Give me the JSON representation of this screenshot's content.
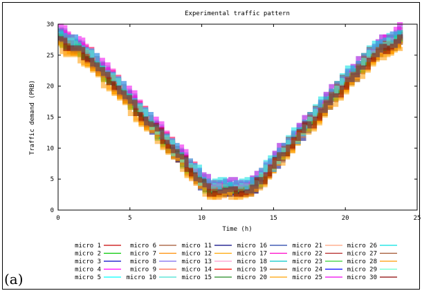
{
  "panel_label": "(a)",
  "chart_data": {
    "type": "line",
    "title": "Experimental traffic pattern",
    "xlabel": "Time (h)",
    "ylabel": "Traffic demand (PRB)",
    "xlim": [
      0,
      25
    ],
    "ylim": [
      0,
      30
    ],
    "xticks": [
      0,
      5,
      10,
      15,
      20,
      25
    ],
    "yticks": [
      0,
      5,
      10,
      15,
      20,
      25,
      30
    ],
    "grid": false,
    "legend_position": "below",
    "series": [
      {
        "name": "micro 1",
        "color": "#c80000",
        "values": [
          28,
          25.5,
          18,
          10,
          3.5,
          3.5,
          10,
          18,
          25.5,
          28
        ]
      },
      {
        "name": "micro 2",
        "color": "#00c800",
        "values": [
          27.5,
          25,
          17.5,
          9.5,
          3,
          3.5,
          10.5,
          18.5,
          26,
          28.5
        ]
      },
      {
        "name": "micro 3",
        "color": "#0000c8",
        "values": [
          28.5,
          25.5,
          18,
          10,
          3.5,
          3,
          10,
          18,
          25.5,
          27.5
        ]
      },
      {
        "name": "micro 4",
        "color": "#ff00ff",
        "values": [
          29,
          26,
          18.5,
          10.5,
          4,
          4,
          10.5,
          18.5,
          26,
          28.5
        ]
      },
      {
        "name": "micro 5",
        "color": "#00ffff",
        "values": [
          28,
          25,
          17.5,
          9.5,
          3.5,
          3.5,
          10,
          18,
          25.5,
          28
        ]
      },
      {
        "name": "micro 6",
        "color": "#a0522d",
        "values": [
          27.5,
          25,
          17.5,
          10,
          3,
          3,
          10,
          18,
          25.5,
          27.5
        ]
      },
      {
        "name": "micro 7",
        "color": "#ff8c00",
        "values": [
          27,
          24.5,
          17,
          9.5,
          2.5,
          3,
          9.5,
          17.5,
          25,
          27
        ]
      },
      {
        "name": "micro 8",
        "color": "#7b68ee",
        "values": [
          28,
          25.5,
          18,
          10,
          3.5,
          3.5,
          10,
          18,
          25.5,
          28
        ]
      },
      {
        "name": "micro 9",
        "color": "#ff6347",
        "values": [
          28.5,
          26,
          18.5,
          10.5,
          4,
          3.5,
          10.5,
          18.5,
          26,
          28
        ]
      },
      {
        "name": "micro 10",
        "color": "#40e0d0",
        "values": [
          29,
          26,
          18.5,
          10.5,
          4.5,
          4.5,
          11,
          19,
          26.5,
          29
        ]
      },
      {
        "name": "micro 11",
        "color": "#000080",
        "values": [
          28,
          25,
          17.5,
          9.5,
          3,
          3,
          9.5,
          17.5,
          25,
          27.5
        ]
      },
      {
        "name": "micro 12",
        "color": "#ffa500",
        "values": [
          27,
          24.5,
          17,
          9.5,
          3,
          3,
          9.5,
          17,
          24.5,
          27
        ]
      },
      {
        "name": "micro 13",
        "color": "#ff99cc",
        "values": [
          28,
          25.5,
          18,
          10,
          3.5,
          3.5,
          10,
          18,
          25.5,
          28
        ]
      },
      {
        "name": "micro 14",
        "color": "#ff0000",
        "values": [
          28.5,
          25.5,
          18,
          10,
          3.5,
          3.5,
          10.5,
          18.5,
          26,
          28.5
        ]
      },
      {
        "name": "micro 15",
        "color": "#228b22",
        "values": [
          27.5,
          25,
          17.5,
          9.5,
          3,
          3,
          10,
          18,
          25.5,
          27.5
        ]
      },
      {
        "name": "micro 16",
        "color": "#1e3ca8",
        "values": [
          28,
          25.5,
          18,
          10,
          3.5,
          3.5,
          10,
          18,
          25.5,
          28
        ]
      },
      {
        "name": "micro 17",
        "color": "#ff00c8",
        "values": [
          29,
          26,
          18.5,
          10.5,
          4,
          4,
          10.5,
          18.5,
          26,
          29
        ]
      },
      {
        "name": "micro 18",
        "color": "#00c8c8",
        "values": [
          28.5,
          25.5,
          18,
          10,
          4,
          4,
          10.5,
          18.5,
          26,
          28.5
        ]
      },
      {
        "name": "micro 19",
        "color": "#8b4513",
        "values": [
          27.5,
          25,
          17.5,
          9.5,
          3,
          3,
          10,
          17.5,
          25,
          27.5
        ]
      },
      {
        "name": "micro 20",
        "color": "#ffa000",
        "values": [
          26.5,
          24,
          16.5,
          9,
          2.5,
          2.5,
          9.5,
          17,
          24.5,
          26.5
        ]
      },
      {
        "name": "micro 21",
        "color": "#ffa07a",
        "values": [
          28,
          25.5,
          18,
          10,
          3.5,
          3.5,
          10,
          18,
          25.5,
          28
        ]
      },
      {
        "name": "micro 22",
        "color": "#b22222",
        "values": [
          28,
          25,
          17.5,
          10,
          3.5,
          3,
          10,
          18,
          25.5,
          27.5
        ]
      },
      {
        "name": "micro 23",
        "color": "#32cd32",
        "values": [
          27.5,
          25,
          17.5,
          9.5,
          3,
          3.5,
          10,
          18,
          25.5,
          28
        ]
      },
      {
        "name": "micro 24",
        "color": "#0000ff",
        "values": [
          28,
          25.5,
          18,
          10,
          3.5,
          3.5,
          10,
          18,
          25.5,
          28
        ]
      },
      {
        "name": "micro 25",
        "color": "#ee00ee",
        "values": [
          29.5,
          26.5,
          19,
          11,
          4.5,
          4.5,
          11,
          19,
          26.5,
          29.5
        ]
      },
      {
        "name": "micro 26",
        "color": "#00e0e0",
        "values": [
          29,
          26,
          18.5,
          10.5,
          4.5,
          4.5,
          11,
          19,
          26.5,
          29
        ]
      },
      {
        "name": "micro 27",
        "color": "#a0522d",
        "values": [
          27.5,
          25,
          17.5,
          9.5,
          3,
          3,
          10,
          18,
          25.5,
          27.5
        ]
      },
      {
        "name": "micro 28",
        "color": "#ff9900",
        "values": [
          26.5,
          24,
          16.5,
          9,
          2.5,
          2.5,
          9.5,
          17,
          24.5,
          26.5
        ]
      },
      {
        "name": "micro 29",
        "color": "#66ffcc",
        "values": [
          28,
          25.5,
          18,
          10,
          3.5,
          3.5,
          10,
          18,
          25.5,
          28
        ]
      },
      {
        "name": "micro 30",
        "color": "#8b0000",
        "values": [
          27.5,
          25,
          17.5,
          10,
          3,
          3,
          10,
          17.5,
          25,
          27.5
        ]
      }
    ],
    "x": [
      0,
      2,
      5,
      8,
      10.5,
      13.5,
      16,
      19,
      22,
      24
    ]
  }
}
